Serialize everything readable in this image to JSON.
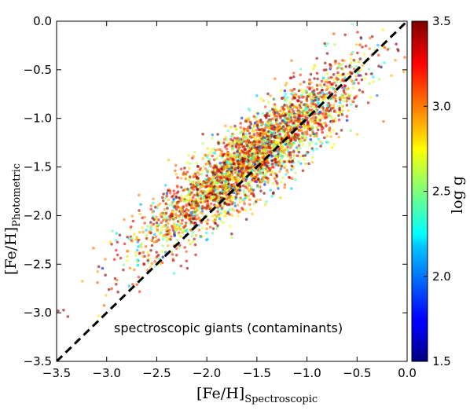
{
  "chart_data": {
    "type": "scatter",
    "annotation": "spectroscopic giants (contaminants)",
    "xlabel": "[Fe/H]",
    "xlabel_sub": "Spectroscopic",
    "ylabel": "[Fe/H]",
    "ylabel_sub": "Photometric",
    "xlim": [
      -3.5,
      0.0
    ],
    "ylim": [
      -3.5,
      0.0
    ],
    "xticks": [
      "−3.5",
      "−3.0",
      "−2.5",
      "−2.0",
      "−1.5",
      "−1.0",
      "−0.5",
      "0.0"
    ],
    "yticks": [
      "−3.5",
      "−3.0",
      "−2.5",
      "−2.0",
      "−1.5",
      "−1.0",
      "−0.5",
      "0.0"
    ],
    "identity_line": {
      "from": [
        -3.5,
        -3.5
      ],
      "to": [
        0.0,
        0.0
      ],
      "style": "dashed",
      "color": "#000000"
    },
    "colorbar": {
      "label": "log g",
      "range": [
        1.5,
        3.5
      ],
      "ticks": [
        "1.5",
        "2.0",
        "2.5",
        "3.0",
        "3.5"
      ],
      "colormap": "jet"
    },
    "points_note": "x = spectroscopic [Fe/H], y = photometric [Fe/H], c = log g",
    "x": [
      -2.1,
      -1.8,
      -1.6,
      -1.4,
      -1.2,
      -1.0,
      -0.8,
      -0.6,
      -1.5,
      -1.7,
      -1.9,
      -2.3,
      -2.5,
      -1.1,
      -0.9,
      -1.3,
      -2.0,
      -2.2,
      -1.6,
      -0.7,
      -1.4,
      -1.8,
      -1.2,
      -2.6,
      -0.5,
      -1.0,
      -1.5,
      -2.4,
      -1.9,
      -1.1
    ],
    "y": [
      -1.9,
      -1.7,
      -1.5,
      -1.3,
      -1.2,
      -1.0,
      -0.9,
      -0.7,
      -1.3,
      -1.6,
      -1.8,
      -2.0,
      -2.1,
      -1.1,
      -0.8,
      -1.2,
      -1.7,
      -1.9,
      -1.2,
      -0.6,
      -1.4,
      -1.5,
      -1.0,
      -2.2,
      -0.5,
      -0.9,
      -1.6,
      -1.8,
      -1.9,
      -1.2
    ],
    "c": [
      3.2,
      2.8,
      3.4,
      3.0,
      2.6,
      3.3,
      3.1,
      2.9,
      3.5,
      2.4,
      3.2,
      3.0,
      2.7,
      3.4,
      2.2,
      2.9,
      3.3,
      3.1,
      2.5,
      3.0,
      3.4,
      2.8,
      3.2,
      2.6,
      3.1,
      2.3,
      3.0,
      3.3,
      2.7,
      3.4
    ],
    "density_model": {
      "n": 3200,
      "x_mean": -1.55,
      "x_sd": 0.55,
      "slope": 0.78,
      "intercept": -0.2,
      "y_sd": 0.21,
      "c_mean": 2.95,
      "c_sd": 0.45
    }
  }
}
